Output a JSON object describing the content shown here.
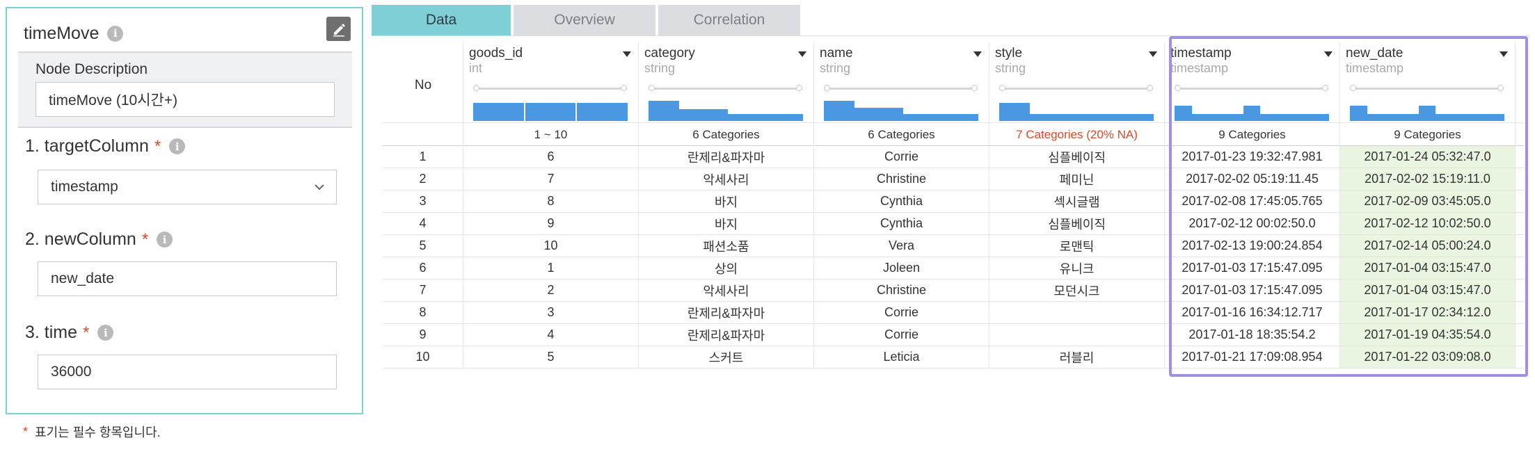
{
  "panel": {
    "title": "timeMove",
    "description_label": "Node Description",
    "description_value": "timeMove (10시간+)",
    "target_column_label": "1. targetColumn",
    "target_column_value": "timestamp",
    "new_column_label": "2. newColumn",
    "new_column_value": "new_date",
    "time_label": "3. time",
    "time_value": "36000",
    "required_star": "*",
    "footnote": "표기는 필수 항목입니다."
  },
  "tabs": [
    {
      "label": "Data",
      "active": true
    },
    {
      "label": "Overview",
      "active": false
    },
    {
      "label": "Correlation",
      "active": false
    }
  ],
  "table": {
    "no_header": "No",
    "columns": [
      {
        "name": "goods_id",
        "type": "int",
        "summary": "1 ~ 10",
        "summary_warn": false,
        "hist": [
          0.55,
          0.55,
          0.55
        ],
        "hist_kind": "even"
      },
      {
        "name": "category",
        "type": "string",
        "summary": "6 Categories",
        "summary_warn": false,
        "hist": [
          0.6,
          0.35,
          0.2,
          0.2,
          0.2,
          0.2
        ],
        "hist_kind": "cat"
      },
      {
        "name": "name",
        "type": "string",
        "summary": "6 Categories",
        "summary_warn": false,
        "hist": [
          0.6,
          0.4,
          0.2,
          0.2,
          0.2,
          0.2
        ],
        "hist_kind": "cat"
      },
      {
        "name": "style",
        "type": "string",
        "summary": "7 Categories (20% NA)",
        "summary_warn": true,
        "hist": [
          0.55,
          0.2,
          0.2,
          0.2,
          0.2,
          0.2,
          0.2
        ],
        "hist_kind": "cat"
      },
      {
        "name": "timestamp",
        "type": "timestamp",
        "summary": "9 Categories",
        "summary_warn": false,
        "hist": [
          0.45,
          0.2,
          0.2,
          0.2,
          0.45,
          0.2,
          0.2,
          0.2,
          0.2
        ],
        "hist_kind": "cat"
      },
      {
        "name": "new_date",
        "type": "timestamp",
        "summary": "9 Categories",
        "summary_warn": false,
        "hist": [
          0.45,
          0.2,
          0.2,
          0.2,
          0.45,
          0.2,
          0.2,
          0.2,
          0.2
        ],
        "hist_kind": "cat"
      }
    ],
    "rows": [
      [
        "1",
        "6",
        "란제리&파자마",
        "Corrie",
        "심플베이직",
        "2017-01-23 19:32:47.981",
        "2017-01-24 05:32:47.0"
      ],
      [
        "2",
        "7",
        "악세사리",
        "Christine",
        "페미닌",
        "2017-02-02 05:19:11.45",
        "2017-02-02 15:19:11.0"
      ],
      [
        "3",
        "8",
        "바지",
        "Cynthia",
        "섹시글램",
        "2017-02-08 17:45:05.765",
        "2017-02-09 03:45:05.0"
      ],
      [
        "4",
        "9",
        "바지",
        "Cynthia",
        "심플베이직",
        "2017-02-12 00:02:50.0",
        "2017-02-12 10:02:50.0"
      ],
      [
        "5",
        "10",
        "패션소품",
        "Vera",
        "로맨틱",
        "2017-02-13 19:00:24.854",
        "2017-02-14 05:00:24.0"
      ],
      [
        "6",
        "1",
        "상의",
        "Joleen",
        "유니크",
        "2017-01-03 17:15:47.095",
        "2017-01-04 03:15:47.0"
      ],
      [
        "7",
        "2",
        "악세사리",
        "Christine",
        "모던시크",
        "2017-01-03 17:15:47.095",
        "2017-01-04 03:15:47.0"
      ],
      [
        "8",
        "3",
        "란제리&파자마",
        "Corrie",
        "",
        "2017-01-16 16:34:12.717",
        "2017-01-17 02:34:12.0"
      ],
      [
        "9",
        "4",
        "란제리&파자마",
        "Corrie",
        "",
        "2017-01-18 18:35:54.2",
        "2017-01-19 04:35:54.0"
      ],
      [
        "10",
        "5",
        "스커트",
        "Leticia",
        "러블리",
        "2017-01-21 17:09:08.954",
        "2017-01-22 03:09:08.0"
      ]
    ]
  },
  "colors": {
    "accent": "#7fd0d6",
    "highlight": "#a18fe3",
    "bar": "#4a98e2",
    "new_cell_bg": "#eaf5e1",
    "required": "#d84a26"
  }
}
